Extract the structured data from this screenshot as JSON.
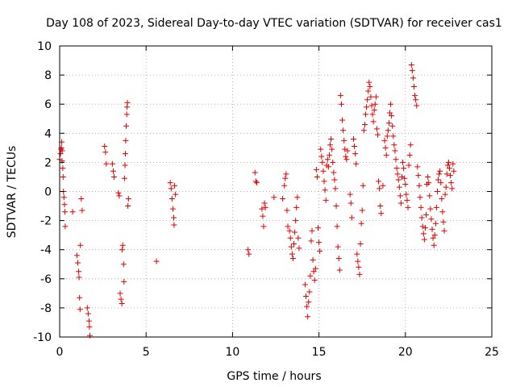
{
  "chart_data": {
    "type": "scatter",
    "title": "Day 108 of 2023, Sidereal Day-to-day VTEC variation (SDTVAR) for receiver cas1",
    "xlabel": "GPS time / hours",
    "ylabel": "SDTVAR / TECUs",
    "xlim": [
      0,
      25
    ],
    "ylim": [
      -10,
      10
    ],
    "xticks": [
      "0",
      "5",
      "10",
      "15",
      "20",
      "25"
    ],
    "yticks": [
      "-10",
      "-8",
      "-6",
      "-4",
      "-2",
      "0",
      "2",
      "4",
      "6",
      "8",
      "10"
    ],
    "grid": true,
    "marker": "+",
    "color": "#e00000",
    "series": [
      {
        "name": "SDTVAR",
        "points": [
          [
            0.0,
            2.2
          ],
          [
            0.05,
            2.6
          ],
          [
            0.1,
            3.0
          ],
          [
            0.12,
            3.4
          ],
          [
            0.15,
            2.8
          ],
          [
            0.18,
            1.6
          ],
          [
            0.2,
            1.0
          ],
          [
            0.22,
            0.0
          ],
          [
            0.25,
            -0.4
          ],
          [
            0.28,
            -0.9
          ],
          [
            0.3,
            -1.4
          ],
          [
            0.32,
            -2.4
          ],
          [
            0.08,
            2.9
          ],
          [
            0.14,
            2.1
          ],
          [
            0.75,
            -1.4
          ],
          [
            1.0,
            -4.4
          ],
          [
            1.05,
            -4.9
          ],
          [
            1.1,
            -5.5
          ],
          [
            1.12,
            -5.9
          ],
          [
            1.15,
            -7.3
          ],
          [
            1.18,
            -8.1
          ],
          [
            1.2,
            -3.7
          ],
          [
            1.25,
            -0.5
          ],
          [
            1.3,
            -1.3
          ],
          [
            1.6,
            -8.0
          ],
          [
            1.65,
            -8.4
          ],
          [
            1.7,
            -8.9
          ],
          [
            1.72,
            -9.3
          ],
          [
            1.75,
            -9.9
          ],
          [
            2.6,
            3.1
          ],
          [
            2.65,
            2.7
          ],
          [
            2.7,
            1.9
          ],
          [
            3.05,
            1.9
          ],
          [
            3.1,
            1.4
          ],
          [
            3.15,
            1.0
          ],
          [
            3.4,
            -0.1
          ],
          [
            3.45,
            -0.3
          ],
          [
            3.5,
            -7.0
          ],
          [
            3.55,
            -7.4
          ],
          [
            3.6,
            -7.7
          ],
          [
            3.62,
            -4.0
          ],
          [
            3.65,
            -3.7
          ],
          [
            3.7,
            -5.0
          ],
          [
            3.72,
            -6.2
          ],
          [
            3.75,
            0.9
          ],
          [
            3.78,
            1.8
          ],
          [
            3.8,
            2.6
          ],
          [
            3.82,
            3.5
          ],
          [
            3.85,
            4.5
          ],
          [
            3.88,
            5.3
          ],
          [
            3.9,
            5.8
          ],
          [
            3.92,
            6.1
          ],
          [
            3.95,
            -1.0
          ],
          [
            3.98,
            -0.5
          ],
          [
            5.6,
            -4.8
          ],
          [
            6.4,
            0.6
          ],
          [
            6.45,
            0.2
          ],
          [
            6.5,
            -0.5
          ],
          [
            6.55,
            -1.2
          ],
          [
            6.6,
            -1.8
          ],
          [
            6.62,
            -2.3
          ],
          [
            6.65,
            0.4
          ],
          [
            6.7,
            -0.2
          ],
          [
            10.9,
            -4.0
          ],
          [
            10.95,
            -4.3
          ],
          [
            11.3,
            1.3
          ],
          [
            11.35,
            0.7
          ],
          [
            11.4,
            0.6
          ],
          [
            11.7,
            -1.2
          ],
          [
            11.75,
            -1.7
          ],
          [
            11.8,
            -2.4
          ],
          [
            11.85,
            -0.8
          ],
          [
            11.9,
            -1.1
          ],
          [
            12.4,
            -0.4
          ],
          [
            12.9,
            -0.5
          ],
          [
            13.0,
            0.4
          ],
          [
            13.05,
            0.9
          ],
          [
            13.1,
            1.2
          ],
          [
            13.15,
            -1.3
          ],
          [
            13.2,
            -2.4
          ],
          [
            13.3,
            -2.7
          ],
          [
            13.35,
            -3.2
          ],
          [
            13.4,
            -3.8
          ],
          [
            13.45,
            -4.3
          ],
          [
            13.5,
            -4.6
          ],
          [
            13.55,
            -3.6
          ],
          [
            13.6,
            -2.8
          ],
          [
            13.65,
            -2.0
          ],
          [
            13.7,
            -1.1
          ],
          [
            13.75,
            -0.4
          ],
          [
            13.8,
            -3.2
          ],
          [
            13.85,
            -3.9
          ],
          [
            14.2,
            -6.4
          ],
          [
            14.25,
            -7.2
          ],
          [
            14.3,
            -7.9
          ],
          [
            14.35,
            -8.6
          ],
          [
            14.4,
            -7.6
          ],
          [
            14.45,
            -6.9
          ],
          [
            14.5,
            -5.8
          ],
          [
            14.55,
            -3.4
          ],
          [
            14.6,
            -2.7
          ],
          [
            14.65,
            -4.7
          ],
          [
            14.7,
            -5.5
          ],
          [
            14.75,
            -6.1
          ],
          [
            14.8,
            -5.3
          ],
          [
            14.85,
            1.5
          ],
          [
            14.9,
            1.0
          ],
          [
            14.95,
            -2.5
          ],
          [
            15.0,
            -3.5
          ],
          [
            15.05,
            -4.1
          ],
          [
            15.1,
            2.9
          ],
          [
            15.15,
            2.4
          ],
          [
            15.2,
            2.0
          ],
          [
            15.25,
            1.4
          ],
          [
            15.3,
            0.7
          ],
          [
            15.35,
            0.1
          ],
          [
            15.4,
            -0.6
          ],
          [
            15.45,
            1.8
          ],
          [
            15.5,
            2.2
          ],
          [
            15.55,
            1.7
          ],
          [
            15.6,
            2.5
          ],
          [
            15.65,
            3.2
          ],
          [
            15.7,
            3.6
          ],
          [
            15.75,
            2.9
          ],
          [
            15.8,
            2.0
          ],
          [
            15.85,
            1.3
          ],
          [
            15.9,
            0.8
          ],
          [
            15.95,
            0.2
          ],
          [
            16.0,
            -1.0
          ],
          [
            16.05,
            -2.4
          ],
          [
            16.1,
            -3.8
          ],
          [
            16.15,
            -4.6
          ],
          [
            16.2,
            -5.4
          ],
          [
            16.25,
            6.6
          ],
          [
            16.3,
            6.0
          ],
          [
            16.35,
            4.9
          ],
          [
            16.4,
            4.2
          ],
          [
            16.45,
            3.5
          ],
          [
            16.5,
            2.9
          ],
          [
            16.55,
            2.4
          ],
          [
            16.6,
            2.2
          ],
          [
            16.65,
            2.8
          ],
          [
            16.8,
            -0.2
          ],
          [
            16.85,
            -0.8
          ],
          [
            16.9,
            -1.8
          ],
          [
            17.0,
            3.6
          ],
          [
            17.05,
            3.1
          ],
          [
            17.1,
            2.6
          ],
          [
            17.15,
            1.9
          ],
          [
            17.2,
            -4.3
          ],
          [
            17.25,
            -4.8
          ],
          [
            17.3,
            -5.2
          ],
          [
            17.35,
            -5.7
          ],
          [
            17.4,
            -3.6
          ],
          [
            17.45,
            -2.2
          ],
          [
            17.5,
            -1.3
          ],
          [
            17.55,
            0.4
          ],
          [
            17.6,
            4.2
          ],
          [
            17.65,
            4.6
          ],
          [
            17.7,
            5.3
          ],
          [
            17.75,
            5.8
          ],
          [
            17.8,
            6.3
          ],
          [
            17.85,
            6.9
          ],
          [
            17.9,
            7.5
          ],
          [
            17.95,
            7.2
          ],
          [
            18.0,
            6.5
          ],
          [
            18.05,
            5.9
          ],
          [
            18.1,
            5.3
          ],
          [
            18.15,
            4.8
          ],
          [
            18.2,
            5.6
          ],
          [
            18.25,
            6.0
          ],
          [
            18.3,
            6.5
          ],
          [
            18.35,
            4.3
          ],
          [
            18.4,
            3.9
          ],
          [
            18.45,
            0.7
          ],
          [
            18.5,
            0.2
          ],
          [
            18.55,
            -1.0
          ],
          [
            18.6,
            -1.5
          ],
          [
            18.7,
            0.4
          ],
          [
            18.8,
            3.5
          ],
          [
            18.85,
            3.0
          ],
          [
            18.9,
            2.5
          ],
          [
            18.95,
            3.8
          ],
          [
            19.0,
            4.2
          ],
          [
            19.05,
            4.7
          ],
          [
            19.1,
            5.4
          ],
          [
            19.15,
            6.0
          ],
          [
            19.2,
            5.2
          ],
          [
            19.25,
            4.5
          ],
          [
            19.3,
            3.8
          ],
          [
            19.35,
            3.2
          ],
          [
            19.4,
            2.8
          ],
          [
            19.45,
            2.2
          ],
          [
            19.5,
            1.6
          ],
          [
            19.55,
            1.2
          ],
          [
            19.6,
            0.8
          ],
          [
            19.65,
            0.3
          ],
          [
            19.7,
            -0.3
          ],
          [
            19.75,
            -0.8
          ],
          [
            19.8,
            1.0
          ],
          [
            19.85,
            2.0
          ],
          [
            19.9,
            1.6
          ],
          [
            19.95,
            0.9
          ],
          [
            20.0,
            0.5
          ],
          [
            20.05,
            -0.2
          ],
          [
            20.1,
            -0.6
          ],
          [
            20.15,
            -1.1
          ],
          [
            20.2,
            1.8
          ],
          [
            20.25,
            2.5
          ],
          [
            20.3,
            3.2
          ],
          [
            20.35,
            8.7
          ],
          [
            20.4,
            8.3
          ],
          [
            20.45,
            7.8
          ],
          [
            20.5,
            7.2
          ],
          [
            20.55,
            6.6
          ],
          [
            20.6,
            6.3
          ],
          [
            20.65,
            5.9
          ],
          [
            20.7,
            1.7
          ],
          [
            20.75,
            1.1
          ],
          [
            20.8,
            0.4
          ],
          [
            20.85,
            -0.4
          ],
          [
            20.9,
            -1.1
          ],
          [
            20.95,
            -1.8
          ],
          [
            21.0,
            -2.4
          ],
          [
            21.05,
            -2.9
          ],
          [
            21.1,
            -3.3
          ],
          [
            21.15,
            -2.5
          ],
          [
            21.2,
            -1.6
          ],
          [
            21.25,
            0.5
          ],
          [
            21.3,
            1.0
          ],
          [
            21.35,
            0.6
          ],
          [
            21.4,
            -0.3
          ],
          [
            21.45,
            -1.2
          ],
          [
            21.5,
            -1.9
          ],
          [
            21.55,
            -2.6
          ],
          [
            21.6,
            -3.2
          ],
          [
            21.65,
            -3.7
          ],
          [
            21.7,
            -3.0
          ],
          [
            21.75,
            -2.2
          ],
          [
            21.8,
            -1.1
          ],
          [
            21.85,
            0.0
          ],
          [
            21.9,
            0.8
          ],
          [
            21.95,
            1.2
          ],
          [
            22.0,
            1.4
          ],
          [
            22.05,
            0.6
          ],
          [
            22.1,
            -0.5
          ],
          [
            22.15,
            -1.4
          ],
          [
            22.2,
            -2.1
          ],
          [
            22.25,
            -2.7
          ],
          [
            22.3,
            -0.2
          ],
          [
            22.35,
            0.3
          ],
          [
            22.4,
            1.2
          ],
          [
            22.45,
            1.8
          ],
          [
            22.5,
            2.0
          ],
          [
            22.55,
            1.6
          ],
          [
            22.6,
            1.1
          ],
          [
            22.65,
            0.6
          ],
          [
            22.7,
            0.2
          ],
          [
            22.75,
            1.9
          ],
          [
            22.8,
            1.4
          ]
        ]
      }
    ]
  }
}
